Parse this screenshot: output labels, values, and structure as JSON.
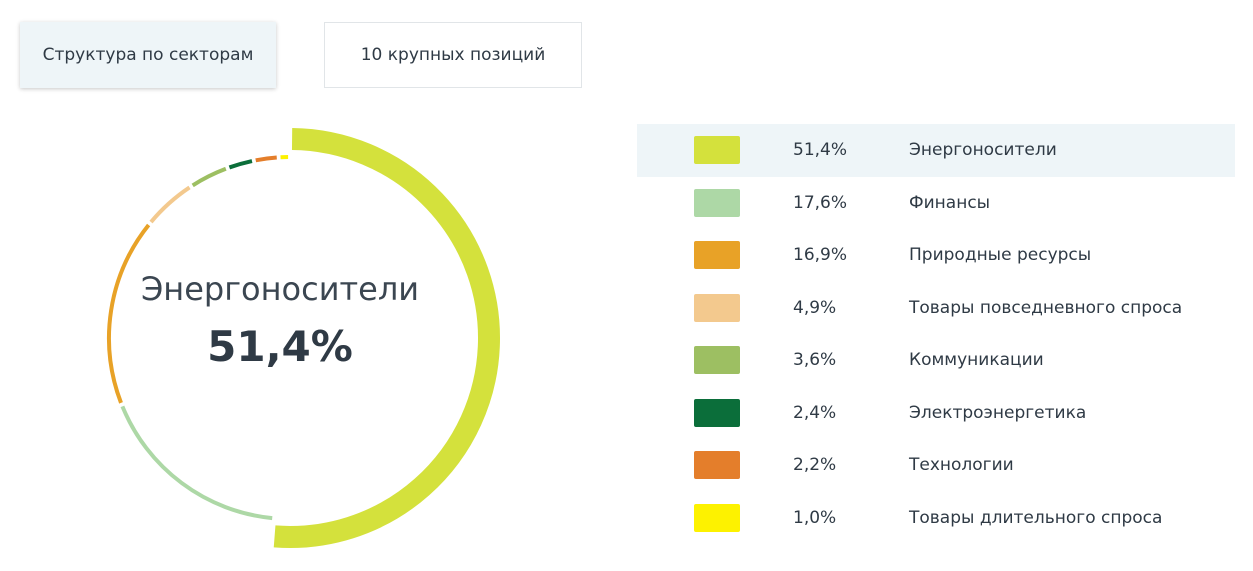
{
  "tabs": [
    {
      "label": "Структура по секторам",
      "active": true
    },
    {
      "label": "10 крупных позиций",
      "active": false
    }
  ],
  "center": {
    "label": "Энергоносители",
    "value": "51,4%"
  },
  "colors": {
    "selected_row_bg": "#eef5f8",
    "text": "#2f3a45"
  },
  "chart_data": {
    "type": "pie",
    "variant": "donut",
    "selected": "Энергоносители",
    "unit": "%",
    "slices": [
      {
        "label": "Энергоносители",
        "value": 51.4,
        "display": "51,4%",
        "color": "#d4e13c"
      },
      {
        "label": "Финансы",
        "value": 17.6,
        "display": "17,6%",
        "color": "#add8a6"
      },
      {
        "label": "Природные ресурсы",
        "value": 16.9,
        "display": "16,9%",
        "color": "#e8a227"
      },
      {
        "label": "Товары повседневного спроса",
        "value": 4.9,
        "display": "4,9%",
        "color": "#f3c98e"
      },
      {
        "label": "Коммуникации",
        "value": 3.6,
        "display": "3,6%",
        "color": "#9dbf62"
      },
      {
        "label": "Электроэнергетика",
        "value": 2.4,
        "display": "2,4%",
        "color": "#0b6e3a"
      },
      {
        "label": "Технологии",
        "value": 2.2,
        "display": "2,2%",
        "color": "#e47e2b"
      },
      {
        "label": "Товары длительного спроса",
        "value": 1.0,
        "display": "1,0%",
        "color": "#fdf200"
      }
    ]
  }
}
